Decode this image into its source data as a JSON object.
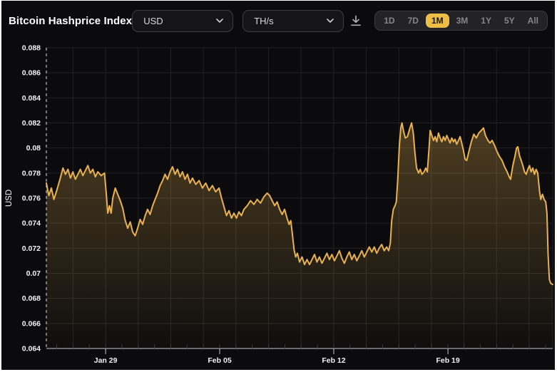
{
  "header": {
    "title": "Bitcoin Hashprice Index",
    "currency_dropdown": {
      "value": "USD"
    },
    "unit_dropdown": {
      "value": "TH/s"
    },
    "range_buttons": [
      "1D",
      "7D",
      "1M",
      "3M",
      "1Y",
      "5Y",
      "All"
    ],
    "active_range": "1M",
    "icons": [
      "download-icon",
      "chevron-down-icon"
    ]
  },
  "colors": {
    "page_bg": "#ffffff",
    "card_bg": "#0b0b0d",
    "title_text": "#ffffff",
    "dropdown_bg": "#151518",
    "dropdown_border": "#3f3f45",
    "dropdown_text": "#d9d9de",
    "icon": "#aeaeb2",
    "range_active_bg": "#eebd45",
    "range_active_text": "#161616",
    "range_inactive_text": "#85858a",
    "line": "#e9b251",
    "area_top": "rgba(233,178,80,0.30)",
    "area_bottom": "rgba(233,178,80,0.02)",
    "grid": "#222225",
    "axis": "#c9c9c9",
    "minor_tick": "#3a3a3e",
    "tick_label": "#f2f2f2",
    "dashed_line": "#e2e2e2"
  },
  "chart_data": {
    "type": "area",
    "title": "Bitcoin Hashprice Index",
    "xlabel": "",
    "ylabel": "USD",
    "ylim": [
      0.064,
      0.088
    ],
    "xlim": [
      0,
      30.5
    ],
    "grid": true,
    "legend": false,
    "y_ticks": [
      {
        "v": 0.088,
        "label": "0.088"
      },
      {
        "v": 0.086,
        "label": "0.086"
      },
      {
        "v": 0.084,
        "label": "0.084"
      },
      {
        "v": 0.082,
        "label": "0.082"
      },
      {
        "v": 0.08,
        "label": "0.08"
      },
      {
        "v": 0.078,
        "label": "0.078"
      },
      {
        "v": 0.076,
        "label": "0.076"
      },
      {
        "v": 0.074,
        "label": "0.074"
      },
      {
        "v": 0.072,
        "label": "0.072"
      },
      {
        "v": 0.07,
        "label": "0.07"
      },
      {
        "v": 0.068,
        "label": "0.068"
      },
      {
        "v": 0.066,
        "label": "0.066"
      },
      {
        "v": 0.064,
        "label": "0.064"
      }
    ],
    "x_ticks": [
      {
        "t": 3.57,
        "label": "Jan 29"
      },
      {
        "t": 10.44,
        "label": "Feb 05"
      },
      {
        "t": 17.31,
        "label": "Feb 12"
      },
      {
        "t": 24.19,
        "label": "Feb 19"
      }
    ],
    "series": [
      {
        "name": "hashprice-usd-per-ths",
        "points": [
          [
            0,
            0.0772
          ],
          [
            0.15,
            0.0762
          ],
          [
            0.3,
            0.0768
          ],
          [
            0.45,
            0.0759
          ],
          [
            0.6,
            0.0765
          ],
          [
            0.8,
            0.0774
          ],
          [
            1,
            0.0784
          ],
          [
            1.15,
            0.0779
          ],
          [
            1.3,
            0.0783
          ],
          [
            1.45,
            0.0776
          ],
          [
            1.6,
            0.0781
          ],
          [
            1.75,
            0.0775
          ],
          [
            1.9,
            0.0779
          ],
          [
            2.05,
            0.0783
          ],
          [
            2.2,
            0.0778
          ],
          [
            2.35,
            0.0782
          ],
          [
            2.5,
            0.0786
          ],
          [
            2.65,
            0.078
          ],
          [
            2.8,
            0.0783
          ],
          [
            2.95,
            0.0777
          ],
          [
            3.1,
            0.0781
          ],
          [
            3.3,
            0.0778
          ],
          [
            3.5,
            0.078
          ],
          [
            3.6,
            0.0765
          ],
          [
            3.7,
            0.0748
          ],
          [
            3.8,
            0.0754
          ],
          [
            3.9,
            0.0748
          ],
          [
            4,
            0.076
          ],
          [
            4.15,
            0.0768
          ],
          [
            4.3,
            0.0763
          ],
          [
            4.45,
            0.0758
          ],
          [
            4.6,
            0.0752
          ],
          [
            4.75,
            0.0742
          ],
          [
            4.9,
            0.0736
          ],
          [
            5.05,
            0.0741
          ],
          [
            5.2,
            0.0733
          ],
          [
            5.35,
            0.073
          ],
          [
            5.5,
            0.0736
          ],
          [
            5.65,
            0.0743
          ],
          [
            5.8,
            0.0739
          ],
          [
            5.95,
            0.0746
          ],
          [
            6.1,
            0.0751
          ],
          [
            6.25,
            0.0747
          ],
          [
            6.4,
            0.0754
          ],
          [
            6.55,
            0.0759
          ],
          [
            6.7,
            0.0764
          ],
          [
            6.85,
            0.077
          ],
          [
            7,
            0.0774
          ],
          [
            7.15,
            0.0779
          ],
          [
            7.3,
            0.0775
          ],
          [
            7.45,
            0.0781
          ],
          [
            7.6,
            0.0785
          ],
          [
            7.75,
            0.0779
          ],
          [
            7.9,
            0.0783
          ],
          [
            8.05,
            0.0777
          ],
          [
            8.2,
            0.0781
          ],
          [
            8.35,
            0.0775
          ],
          [
            8.5,
            0.0779
          ],
          [
            8.65,
            0.0772
          ],
          [
            8.8,
            0.0776
          ],
          [
            9,
            0.0771
          ],
          [
            9.2,
            0.0774
          ],
          [
            9.4,
            0.0768
          ],
          [
            9.6,
            0.0772
          ],
          [
            9.8,
            0.0766
          ],
          [
            10,
            0.077
          ],
          [
            10.2,
            0.0765
          ],
          [
            10.4,
            0.0768
          ],
          [
            10.55,
            0.076
          ],
          [
            10.7,
            0.0753
          ],
          [
            10.85,
            0.0746
          ],
          [
            11,
            0.075
          ],
          [
            11.15,
            0.0744
          ],
          [
            11.3,
            0.0748
          ],
          [
            11.45,
            0.0744
          ],
          [
            11.6,
            0.0749
          ],
          [
            11.75,
            0.0746
          ],
          [
            11.9,
            0.0751
          ],
          [
            12.1,
            0.0754
          ],
          [
            12.3,
            0.0758
          ],
          [
            12.5,
            0.0755
          ],
          [
            12.7,
            0.0759
          ],
          [
            12.9,
            0.0756
          ],
          [
            13.1,
            0.0761
          ],
          [
            13.3,
            0.0764
          ],
          [
            13.45,
            0.0762
          ],
          [
            13.6,
            0.0758
          ],
          [
            13.75,
            0.0754
          ],
          [
            13.9,
            0.0757
          ],
          [
            14.05,
            0.0751
          ],
          [
            14.2,
            0.0747
          ],
          [
            14.35,
            0.0751
          ],
          [
            14.5,
            0.0744
          ],
          [
            14.62,
            0.0739
          ],
          [
            14.72,
            0.0742
          ],
          [
            14.82,
            0.0731
          ],
          [
            14.92,
            0.0719
          ],
          [
            15.02,
            0.0713
          ],
          [
            15.12,
            0.0716
          ],
          [
            15.25,
            0.0709
          ],
          [
            15.4,
            0.0713
          ],
          [
            15.55,
            0.0707
          ],
          [
            15.7,
            0.0711
          ],
          [
            15.85,
            0.0707
          ],
          [
            16,
            0.0711
          ],
          [
            16.15,
            0.0715
          ],
          [
            16.3,
            0.0709
          ],
          [
            16.45,
            0.0713
          ],
          [
            16.6,
            0.0708
          ],
          [
            16.75,
            0.0712
          ],
          [
            16.9,
            0.0716
          ],
          [
            17.05,
            0.0711
          ],
          [
            17.2,
            0.0715
          ],
          [
            17.35,
            0.071
          ],
          [
            17.5,
            0.0714
          ],
          [
            17.65,
            0.0718
          ],
          [
            17.8,
            0.0712
          ],
          [
            17.95,
            0.0708
          ],
          [
            18.1,
            0.0713
          ],
          [
            18.25,
            0.0717
          ],
          [
            18.4,
            0.0711
          ],
          [
            18.55,
            0.0715
          ],
          [
            18.7,
            0.071
          ],
          [
            18.85,
            0.0714
          ],
          [
            19,
            0.0718
          ],
          [
            19.15,
            0.0713
          ],
          [
            19.3,
            0.0717
          ],
          [
            19.45,
            0.0721
          ],
          [
            19.6,
            0.0717
          ],
          [
            19.75,
            0.0721
          ],
          [
            19.9,
            0.0716
          ],
          [
            20.05,
            0.072
          ],
          [
            20.2,
            0.0723
          ],
          [
            20.35,
            0.0718
          ],
          [
            20.5,
            0.0721
          ],
          [
            20.62,
            0.0718
          ],
          [
            20.72,
            0.0724
          ],
          [
            20.8,
            0.0742
          ],
          [
            20.9,
            0.0751
          ],
          [
            21,
            0.0754
          ],
          [
            21.08,
            0.0757
          ],
          [
            21.16,
            0.0774
          ],
          [
            21.26,
            0.0801
          ],
          [
            21.35,
            0.0816
          ],
          [
            21.42,
            0.082
          ],
          [
            21.52,
            0.0813
          ],
          [
            21.62,
            0.0808
          ],
          [
            21.75,
            0.0809
          ],
          [
            21.88,
            0.0815
          ],
          [
            22,
            0.082
          ],
          [
            22.1,
            0.0812
          ],
          [
            22.2,
            0.0796
          ],
          [
            22.3,
            0.0784
          ],
          [
            22.42,
            0.078
          ],
          [
            22.52,
            0.0783
          ],
          [
            22.62,
            0.0779
          ],
          [
            22.75,
            0.0781
          ],
          [
            22.85,
            0.0784
          ],
          [
            22.95,
            0.0781
          ],
          [
            23.05,
            0.08
          ],
          [
            23.12,
            0.0814
          ],
          [
            23.22,
            0.081
          ],
          [
            23.32,
            0.0806
          ],
          [
            23.42,
            0.0809
          ],
          [
            23.52,
            0.0805
          ],
          [
            23.62,
            0.0812
          ],
          [
            23.72,
            0.0808
          ],
          [
            23.82,
            0.0805
          ],
          [
            23.92,
            0.0809
          ],
          [
            24.02,
            0.0806
          ],
          [
            24.12,
            0.081
          ],
          [
            24.22,
            0.0807
          ],
          [
            24.32,
            0.0804
          ],
          [
            24.42,
            0.0808
          ],
          [
            24.52,
            0.0805
          ],
          [
            24.62,
            0.0807
          ],
          [
            24.72,
            0.0803
          ],
          [
            24.82,
            0.0806
          ],
          [
            24.92,
            0.0809
          ],
          [
            25.02,
            0.0804
          ],
          [
            25.12,
            0.0798
          ],
          [
            25.22,
            0.0791
          ],
          [
            25.32,
            0.079
          ],
          [
            25.45,
            0.0797
          ],
          [
            25.6,
            0.0805
          ],
          [
            25.75,
            0.0811
          ],
          [
            25.9,
            0.0808
          ],
          [
            26.05,
            0.0812
          ],
          [
            26.2,
            0.0814
          ],
          [
            26.33,
            0.0816
          ],
          [
            26.45,
            0.081
          ],
          [
            26.6,
            0.0806
          ],
          [
            26.72,
            0.0804
          ],
          [
            26.85,
            0.0806
          ],
          [
            27,
            0.0802
          ],
          [
            27.15,
            0.0797
          ],
          [
            27.3,
            0.0793
          ],
          [
            27.45,
            0.079
          ],
          [
            27.6,
            0.0785
          ],
          [
            27.75,
            0.0781
          ],
          [
            27.88,
            0.0777
          ],
          [
            27.96,
            0.0775
          ],
          [
            28.1,
            0.0786
          ],
          [
            28.22,
            0.0793
          ],
          [
            28.32,
            0.08
          ],
          [
            28.4,
            0.0801
          ],
          [
            28.5,
            0.0794
          ],
          [
            28.6,
            0.079
          ],
          [
            28.7,
            0.0786
          ],
          [
            28.8,
            0.0781
          ],
          [
            28.9,
            0.0779
          ],
          [
            29,
            0.0783
          ],
          [
            29.1,
            0.0786
          ],
          [
            29.2,
            0.0781
          ],
          [
            29.3,
            0.0784
          ],
          [
            29.4,
            0.0779
          ],
          [
            29.5,
            0.0783
          ],
          [
            29.6,
            0.078
          ],
          [
            29.7,
            0.0766
          ],
          [
            29.78,
            0.0759
          ],
          [
            29.88,
            0.0763
          ],
          [
            29.98,
            0.0759
          ],
          [
            30.08,
            0.0757
          ],
          [
            30.15,
            0.0748
          ],
          [
            30.22,
            0.0715
          ],
          [
            30.3,
            0.0695
          ],
          [
            30.38,
            0.0692
          ],
          [
            30.5,
            0.0691
          ]
        ]
      }
    ]
  }
}
